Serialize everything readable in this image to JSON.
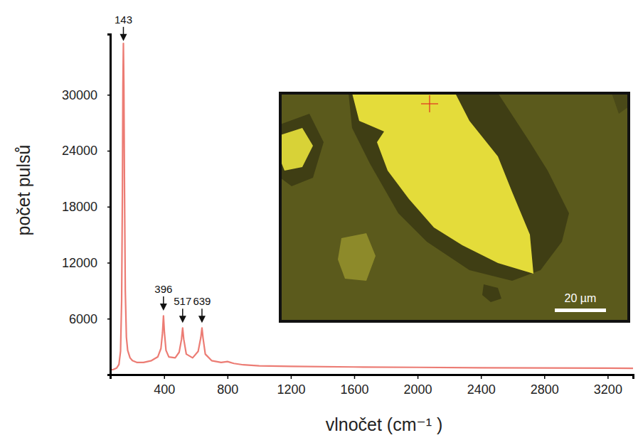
{
  "chart_data": {
    "type": "line",
    "xlabel": "vlnočet (cm⁻¹ )",
    "ylabel": "počet pulsů",
    "color": "#ec7c74",
    "x": [
      60,
      80,
      100,
      115,
      125,
      132,
      137,
      140,
      143,
      146,
      150,
      155,
      162,
      170,
      185,
      200,
      230,
      270,
      320,
      360,
      380,
      390,
      396,
      402,
      412,
      430,
      470,
      495,
      510,
      517,
      524,
      540,
      580,
      615,
      632,
      639,
      646,
      660,
      700,
      760,
      800,
      840,
      900,
      1000,
      1200,
      1600,
      2000,
      2400,
      2800,
      3200,
      3360
    ],
    "values": [
      500,
      550,
      700,
      1100,
      2500,
      8000,
      20000,
      31000,
      35500,
      31000,
      20000,
      9000,
      4000,
      2600,
      1800,
      1500,
      1300,
      1300,
      1500,
      1900,
      2800,
      4500,
      6300,
      4500,
      2600,
      1900,
      1800,
      2400,
      3800,
      5000,
      3800,
      2200,
      1800,
      2500,
      4000,
      5000,
      3900,
      2200,
      1500,
      1300,
      1400,
      1200,
      1050,
      950,
      880,
      820,
      780,
      740,
      710,
      690,
      680
    ],
    "xlim": [
      60,
      3360
    ],
    "ylim": [
      0,
      36500
    ],
    "xticks": [
      400,
      800,
      1200,
      1600,
      2000,
      2400,
      2800,
      3200
    ],
    "yticks": [
      6000,
      12000,
      18000,
      24000,
      30000
    ],
    "annotations": [
      {
        "x": 143,
        "y": 35600,
        "text": "143"
      },
      {
        "x": 396,
        "y": 6700,
        "text": "396"
      },
      {
        "x": 517,
        "y": 5400,
        "text": "517"
      },
      {
        "x": 639,
        "y": 5400,
        "text": "639"
      }
    ],
    "inset": {
      "scale_bar": "20 µm"
    }
  }
}
